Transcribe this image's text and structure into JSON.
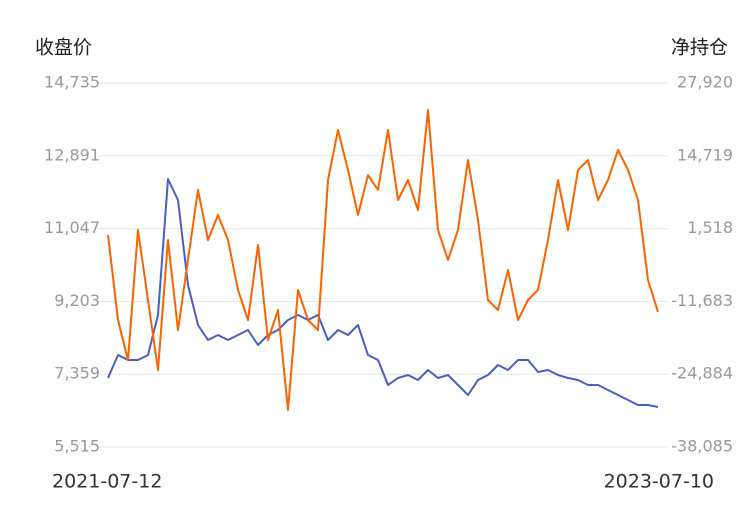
{
  "chart_data": {
    "type": "line",
    "ylabel": "收盘价",
    "y2label": "净持仓",
    "categories": [
      "2021-07-12",
      null,
      null,
      null,
      null,
      null,
      null,
      null,
      null,
      null,
      null,
      null,
      null,
      null,
      null,
      null,
      null,
      null,
      null,
      null,
      null,
      null,
      null,
      null,
      null,
      null,
      null,
      null,
      null,
      null,
      null,
      null,
      null,
      null,
      null,
      null,
      null,
      null,
      null,
      null,
      null,
      null,
      null,
      null,
      null,
      null,
      null,
      null,
      null,
      null,
      null,
      null,
      null,
      null,
      null,
      "2023-07-10"
    ],
    "series": [
      {
        "name": "收盘价",
        "color": "#4a5fc1",
        "axis": "y",
        "values": [
          7263,
          7845,
          7719,
          7719,
          7845,
          8858,
          12300,
          11771,
          9618,
          8605,
          8225,
          8352,
          8225,
          8352,
          8478,
          8099,
          8352,
          8478,
          8732,
          8858,
          8732,
          8858,
          8225,
          8478,
          8352,
          8605,
          7845,
          7719,
          7085,
          7263,
          7339,
          7212,
          7465,
          7263,
          7339,
          7085,
          6832,
          7212,
          7339,
          7592,
          7465,
          7719,
          7719,
          7415,
          7465,
          7339,
          7263,
          7212,
          7085,
          7085,
          6959,
          6832,
          6705,
          6579,
          6579,
          6528
        ]
      },
      {
        "name": "净持仓",
        "color": "#fa6400",
        "axis": "y2",
        "values": [
          358,
          -15055,
          -22308,
          1264,
          -11429,
          -24122,
          -549,
          -16869,
          -4175,
          8518,
          -549,
          3984,
          -549,
          -9615,
          -15055,
          -1455,
          -18682,
          -13242,
          -31375,
          -9615,
          -15055,
          -16869,
          10331,
          19397,
          12144,
          3984,
          11238,
          8518,
          19397,
          6704,
          10331,
          4891,
          23024,
          1264,
          -4175,
          1264,
          13958,
          3078,
          -11429,
          -13242,
          -5989,
          -15055,
          -11429,
          -9615,
          -549,
          10331,
          1264,
          12144,
          13958,
          6704,
          10331,
          15771,
          12144,
          6704,
          -7802,
          -13605
        ]
      }
    ],
    "ylim": [
      5515,
      14735
    ],
    "yticks": [
      {
        "value": 5515,
        "label": "5,515"
      },
      {
        "value": 7359,
        "label": "7,359"
      },
      {
        "value": 9203,
        "label": "9,203"
      },
      {
        "value": 11047,
        "label": "11,047"
      },
      {
        "value": 12891,
        "label": "12,891"
      },
      {
        "value": 14735,
        "label": "14,735"
      }
    ],
    "y2lim": [
      -38085,
      27920
    ],
    "y2ticks": [
      {
        "value": -38085,
        "label": "-38,085"
      },
      {
        "value": -24884,
        "label": "-24,884"
      },
      {
        "value": -11683,
        "label": "-11,683"
      },
      {
        "value": 1518,
        "label": "1,518"
      },
      {
        "value": 14719,
        "label": "14,719"
      },
      {
        "value": 27920,
        "label": "27,920"
      }
    ],
    "grid": true
  }
}
